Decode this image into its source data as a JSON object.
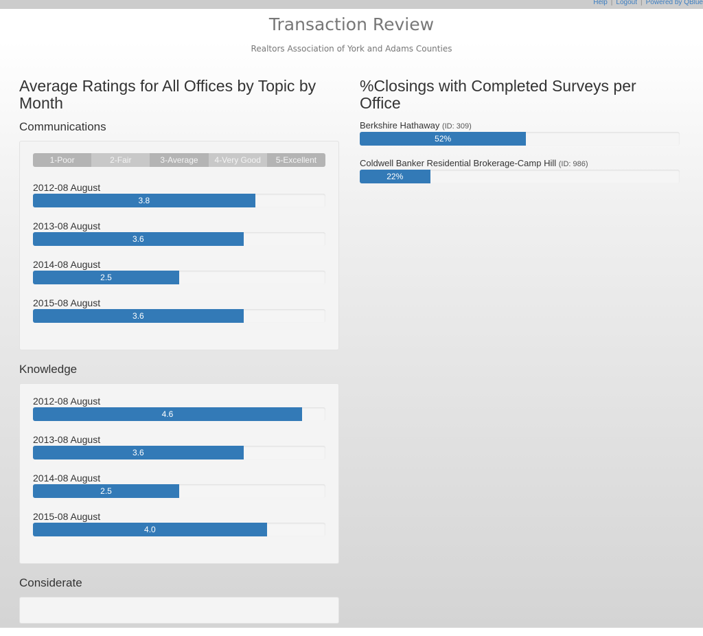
{
  "topbar": {
    "help": "Help",
    "logout": "Logout",
    "powered": "Powered by QBlue"
  },
  "header": {
    "title": "Transaction Review",
    "subtitle": "Realtors Association of York and Adams Counties"
  },
  "left": {
    "title": "Average Ratings for All Offices by Topic by Month",
    "scale_max": 5,
    "legend": [
      "1-Poor",
      "2-Fair",
      "3-Average",
      "4-Very Good",
      "5-Excellent"
    ],
    "legend_colors": [
      "#b4b4b4",
      "#c8c8c8",
      "#b4b4b4",
      "#c8c8c8",
      "#b4b4b4"
    ],
    "topics": [
      {
        "name": "Communications",
        "items": [
          {
            "label": "2012-08 August",
            "value": "3.8"
          },
          {
            "label": "2013-08 August",
            "value": "3.6"
          },
          {
            "label": "2014-08 August",
            "value": "2.5"
          },
          {
            "label": "2015-08 August",
            "value": "3.6"
          }
        ]
      },
      {
        "name": "Knowledge",
        "items": [
          {
            "label": "2012-08 August",
            "value": "4.6"
          },
          {
            "label": "2013-08 August",
            "value": "3.6"
          },
          {
            "label": "2014-08 August",
            "value": "2.5"
          },
          {
            "label": "2015-08 August",
            "value": "4.0"
          }
        ]
      },
      {
        "name": "Considerate",
        "items": []
      }
    ]
  },
  "right": {
    "title": "%Closings with Completed Surveys per Office",
    "offices": [
      {
        "name": "Berkshire Hathaway",
        "id": "(ID: 309)",
        "percent": 52,
        "label": "52%"
      },
      {
        "name": "Coldwell Banker Residential Brokerage-Camp Hill",
        "id": "(ID: 986)",
        "percent": 22,
        "label": "22%"
      }
    ]
  },
  "colors": {
    "bar": "#337ab7"
  }
}
